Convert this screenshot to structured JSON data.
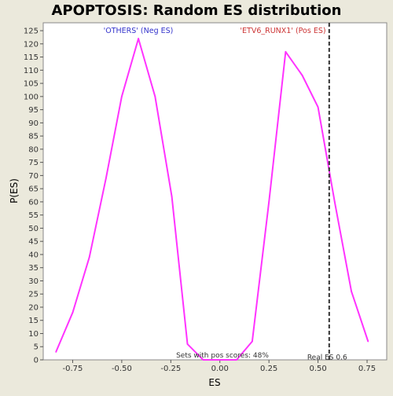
{
  "chart_data": {
    "type": "line",
    "title": "APOPTOSIS: Random ES distribution",
    "xlabel": "ES",
    "ylabel": "P(ES)",
    "xlim": [
      -0.9,
      0.85
    ],
    "ylim": [
      0,
      128
    ],
    "x_ticks": [
      -0.75,
      -0.5,
      -0.25,
      0.0,
      0.25,
      0.5,
      0.75
    ],
    "x_tick_labels": [
      "-0.75",
      "-0.50",
      "-0.25",
      "0.00",
      "0.25",
      "0.50",
      "0.75"
    ],
    "y_ticks": [
      0,
      5,
      10,
      15,
      20,
      25,
      30,
      35,
      40,
      45,
      50,
      55,
      60,
      65,
      70,
      75,
      80,
      85,
      90,
      95,
      100,
      105,
      110,
      115,
      120,
      125
    ],
    "grid": false,
    "series": [
      {
        "color": "#ff33ff",
        "x": [
          -0.835,
          -0.75,
          -0.665,
          -0.58,
          -0.5,
          -0.415,
          -0.33,
          -0.245,
          -0.165,
          -0.085,
          0.0,
          0.085,
          0.165,
          0.25,
          0.335,
          0.42,
          0.5,
          0.585,
          0.67,
          0.755
        ],
        "y": [
          3,
          18,
          39,
          69,
          100,
          122,
          100,
          62,
          6,
          0,
          0,
          0,
          7,
          60,
          117,
          108,
          96,
          60,
          26,
          7
        ]
      }
    ],
    "reference_line": {
      "x": 0.557,
      "label": "Real ES 0.6",
      "color": "#333333"
    },
    "annotations": {
      "neg_label": "'OTHERS' (Neg ES)",
      "neg_color": "#3333cc",
      "pos_label": "'ETV6_RUNX1' (Pos ES)",
      "pos_color": "#cc3333",
      "pos_score_text": "Sets with pos scores: 48%"
    }
  }
}
